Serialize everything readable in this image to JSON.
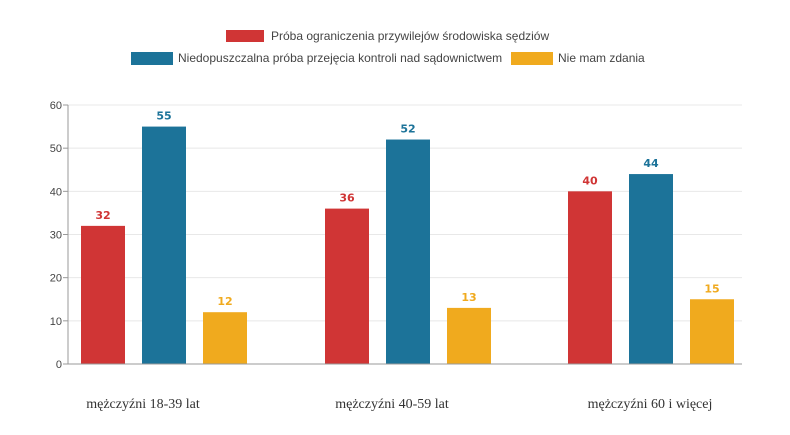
{
  "chart_data": {
    "type": "bar",
    "categories": [
      "mężczyźni 18-39 lat",
      "mężczyźni 40-59 lat",
      "mężczyźni 60 i więcej"
    ],
    "series": [
      {
        "name": "Próba ograniczenia przywilejów środowiska sędziów",
        "color": "#d03535",
        "values": [
          32,
          36,
          40
        ]
      },
      {
        "name": "Niedopuszczalna próba przejęcia kontroli nad sądownictwem",
        "color": "#1c7399",
        "values": [
          55,
          52,
          44
        ]
      },
      {
        "name": "Nie mam zdania",
        "color": "#f0aa1e",
        "values": [
          12,
          13,
          15
        ]
      }
    ],
    "y_ticks": [
      "0",
      "10",
      "20",
      "30",
      "40",
      "50",
      "60"
    ],
    "ylim": [
      0,
      60
    ],
    "grid": true,
    "legend": "top-center"
  }
}
